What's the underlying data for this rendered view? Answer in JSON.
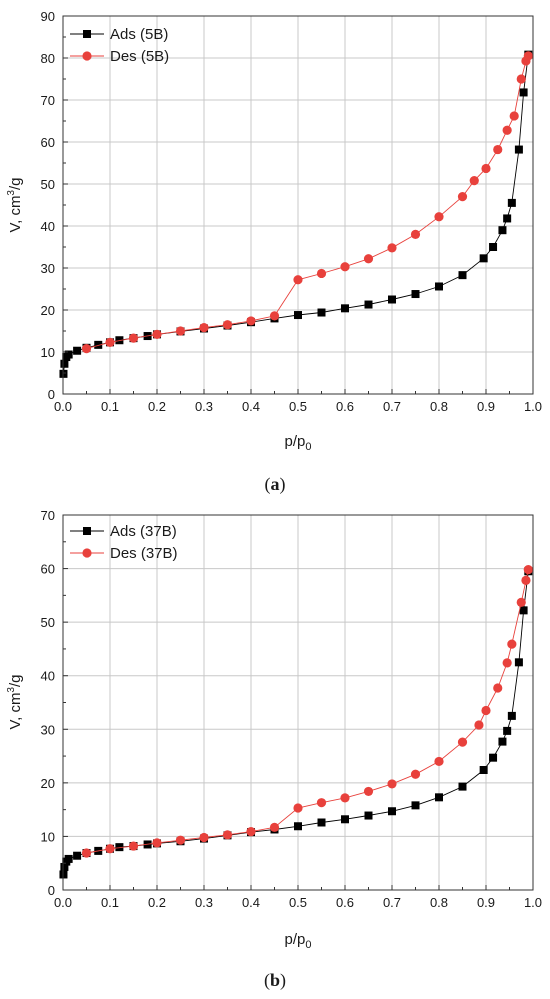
{
  "figure": {
    "panels": [
      {
        "caption_open": "(",
        "caption_letter": "a",
        "caption_close": ")"
      },
      {
        "caption_open": "(",
        "caption_letter": "b",
        "caption_close": ")"
      }
    ]
  },
  "chart_data": [
    {
      "type": "line",
      "title": "",
      "xlabel": "p/p0",
      "xlabel_main": "p/p",
      "xlabel_sub": "0",
      "ylabel": "V, cm3/g",
      "ylabel_main": "V, cm",
      "ylabel_sup": "3",
      "ylabel_tail": "/g",
      "xlim": [
        0,
        1.0
      ],
      "ylim": [
        0,
        90
      ],
      "xticks": [
        "0.0",
        "0.1",
        "0.2",
        "0.3",
        "0.4",
        "0.5",
        "0.6",
        "0.7",
        "0.8",
        "0.9",
        "1.0"
      ],
      "yticks": [
        "0",
        "10",
        "20",
        "30",
        "40",
        "50",
        "60",
        "70",
        "80",
        "90"
      ],
      "grid": true,
      "legend_position": "top-left",
      "series": [
        {
          "name": "Ads (5B)",
          "marker": "square",
          "color": "#000000",
          "x": [
            0.001,
            0.003,
            0.007,
            0.012,
            0.03,
            0.05,
            0.075,
            0.1,
            0.12,
            0.15,
            0.18,
            0.2,
            0.25,
            0.3,
            0.35,
            0.4,
            0.45,
            0.5,
            0.55,
            0.6,
            0.65,
            0.7,
            0.75,
            0.8,
            0.85,
            0.895,
            0.915,
            0.935,
            0.945,
            0.955,
            0.97,
            0.98,
            0.99
          ],
          "y": [
            4.8,
            7.2,
            8.8,
            9.4,
            10.3,
            11.0,
            11.7,
            12.3,
            12.8,
            13.3,
            13.8,
            14.2,
            14.9,
            15.6,
            16.3,
            17.1,
            18.0,
            18.8,
            19.4,
            20.4,
            21.3,
            22.5,
            23.8,
            25.6,
            28.3,
            32.3,
            35.0,
            39.0,
            41.8,
            45.5,
            58.2,
            71.8,
            80.8
          ]
        },
        {
          "name": "Des (5B)",
          "marker": "circle",
          "color": "#e8413c",
          "x": [
            0.99,
            0.985,
            0.975,
            0.96,
            0.945,
            0.925,
            0.9,
            0.875,
            0.85,
            0.8,
            0.75,
            0.7,
            0.65,
            0.6,
            0.55,
            0.5,
            0.45,
            0.4,
            0.35,
            0.3,
            0.25,
            0.2,
            0.15,
            0.1,
            0.05
          ],
          "y": [
            80.5,
            79.3,
            75.0,
            66.2,
            62.8,
            58.2,
            53.7,
            50.8,
            47.0,
            42.2,
            38.0,
            34.8,
            32.2,
            30.3,
            28.7,
            27.2,
            18.6,
            17.4,
            16.5,
            15.8,
            15.0,
            14.2,
            13.3,
            12.3,
            10.8
          ]
        }
      ]
    },
    {
      "type": "line",
      "title": "",
      "xlabel": "p/p0",
      "xlabel_main": "p/p",
      "xlabel_sub": "0",
      "ylabel": "V, cm3/g",
      "ylabel_main": "V, cm",
      "ylabel_sup": "3",
      "ylabel_tail": "/g",
      "xlim": [
        0,
        1.0
      ],
      "ylim": [
        0,
        70
      ],
      "xticks": [
        "0.0",
        "0.1",
        "0.2",
        "0.3",
        "0.4",
        "0.5",
        "0.6",
        "0.7",
        "0.8",
        "0.9",
        "1.0"
      ],
      "yticks": [
        "0",
        "10",
        "20",
        "30",
        "40",
        "50",
        "60",
        "70"
      ],
      "grid": true,
      "legend_position": "top-left",
      "series": [
        {
          "name": "Ads (37B)",
          "marker": "square",
          "color": "#000000",
          "x": [
            0.001,
            0.003,
            0.007,
            0.012,
            0.03,
            0.05,
            0.075,
            0.1,
            0.12,
            0.15,
            0.18,
            0.2,
            0.25,
            0.3,
            0.35,
            0.4,
            0.45,
            0.5,
            0.55,
            0.6,
            0.65,
            0.7,
            0.75,
            0.8,
            0.85,
            0.895,
            0.915,
            0.935,
            0.945,
            0.955,
            0.97,
            0.98,
            0.99
          ],
          "y": [
            2.9,
            4.3,
            5.3,
            5.8,
            6.4,
            6.9,
            7.3,
            7.7,
            8.0,
            8.2,
            8.5,
            8.7,
            9.1,
            9.6,
            10.2,
            10.8,
            11.3,
            11.9,
            12.6,
            13.2,
            13.9,
            14.7,
            15.8,
            17.3,
            19.3,
            22.4,
            24.7,
            27.7,
            29.7,
            32.5,
            42.5,
            52.2,
            59.5
          ]
        },
        {
          "name": "Des (37B)",
          "marker": "circle",
          "color": "#e8413c",
          "x": [
            0.99,
            0.985,
            0.975,
            0.955,
            0.945,
            0.925,
            0.9,
            0.885,
            0.85,
            0.8,
            0.75,
            0.7,
            0.65,
            0.6,
            0.55,
            0.5,
            0.45,
            0.4,
            0.35,
            0.3,
            0.25,
            0.2,
            0.15,
            0.1,
            0.05
          ],
          "y": [
            59.8,
            57.8,
            53.7,
            45.9,
            42.4,
            37.7,
            33.5,
            30.8,
            27.6,
            24.0,
            21.6,
            19.8,
            18.4,
            17.2,
            16.3,
            15.3,
            11.7,
            10.9,
            10.3,
            9.8,
            9.3,
            8.8,
            8.2,
            7.7,
            6.9
          ]
        }
      ]
    }
  ]
}
